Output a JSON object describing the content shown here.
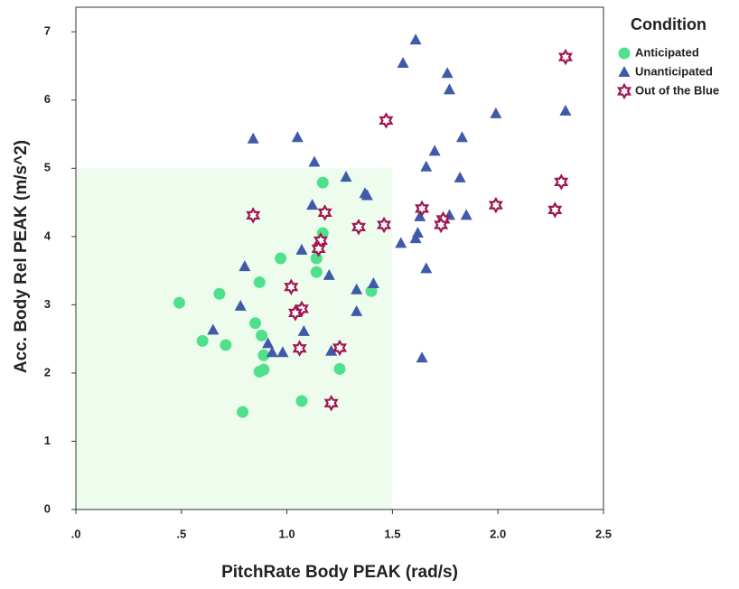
{
  "chart_data": {
    "type": "scatter",
    "x_label": "PitchRate Body PEAK (rad/s)",
    "y_label": "Acc. Body Rel  PEAK (m/s^2)",
    "legend_title": "Condition",
    "legend_position": "right",
    "grid": false,
    "xlim": [
      0,
      2.5
    ],
    "ylim": [
      0,
      7.36
    ],
    "xticks": [
      {
        "value": 0,
        "label": ".0"
      },
      {
        "value": 0.5,
        "label": ".5"
      },
      {
        "value": 1,
        "label": "1.0"
      },
      {
        "value": 1.5,
        "label": "1.5"
      },
      {
        "value": 2,
        "label": "2.0"
      },
      2.5
    ],
    "yticks": [
      0,
      1,
      2,
      3,
      4,
      5,
      6,
      7
    ],
    "region": {
      "x": [
        0,
        1.5
      ],
      "y": [
        0,
        5
      ],
      "color": "#eefcee"
    },
    "series": [
      {
        "name": "Anticipated",
        "color": "#4fe08c",
        "marker": "circle",
        "x": [
          0.49,
          0.68,
          0.6,
          0.71,
          0.87,
          0.97,
          0.85,
          0.88,
          0.89,
          0.87,
          0.89,
          0.79,
          1.07,
          1.14,
          1.14,
          1.17,
          1.17,
          1.25,
          1.4
        ],
        "values": [
          3.03,
          3.16,
          2.47,
          2.41,
          3.33,
          3.68,
          2.73,
          2.55,
          2.26,
          2.02,
          2.05,
          1.43,
          1.59,
          3.68,
          3.48,
          4.05,
          4.79,
          2.06,
          3.2
        ]
      },
      {
        "name": "Unanticipated",
        "color": "#3f5aa8",
        "marker": "triangle",
        "x": [
          1.61,
          1.55,
          1.76,
          1.77,
          2.32,
          1.99,
          0.84,
          1.05,
          1.83,
          1.7,
          1.13,
          1.66,
          1.28,
          1.82,
          1.37,
          1.38,
          1.12,
          1.63,
          1.85,
          1.77,
          1.62,
          1.61,
          1.54,
          1.07,
          0.8,
          1.66,
          1.2,
          1.41,
          1.33,
          0.78,
          1.33,
          1.08,
          0.65,
          0.91,
          0.93,
          0.98,
          1.21,
          1.64
        ],
        "values": [
          6.88,
          6.54,
          6.39,
          6.15,
          5.84,
          5.8,
          5.43,
          5.45,
          5.45,
          5.25,
          5.09,
          5.02,
          4.87,
          4.86,
          4.63,
          4.6,
          4.46,
          4.29,
          4.31,
          4.31,
          4.05,
          3.97,
          3.9,
          3.8,
          3.56,
          3.53,
          3.43,
          3.31,
          3.22,
          2.98,
          2.9,
          2.61,
          2.63,
          2.43,
          2.3,
          2.3,
          2.32,
          2.22
        ]
      },
      {
        "name": "Out of the Blue",
        "color": "#9e1650",
        "marker": "star",
        "x": [
          2.32,
          1.47,
          2.3,
          1.99,
          2.27,
          1.64,
          1.74,
          1.73,
          1.46,
          1.34,
          0.84,
          1.18,
          1.16,
          1.15,
          1.02,
          1.07,
          1.04,
          1.25,
          1.06,
          1.21
        ],
        "values": [
          6.63,
          5.7,
          4.8,
          4.46,
          4.39,
          4.41,
          4.25,
          4.17,
          4.17,
          4.14,
          4.31,
          4.35,
          3.94,
          3.82,
          3.26,
          2.94,
          2.88,
          2.37,
          2.36,
          1.56
        ]
      }
    ]
  }
}
